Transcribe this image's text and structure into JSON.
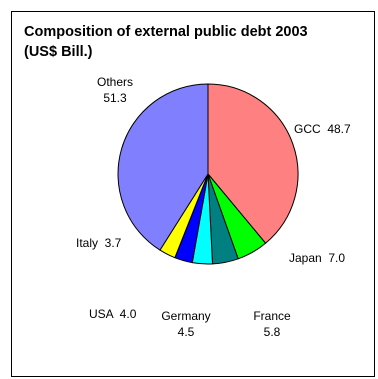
{
  "chart_data": {
    "type": "pie",
    "title": "Composition of external public debt 2003\n(US$ Bill.)",
    "slices": [
      {
        "name": "GCC",
        "value": 48.7,
        "label": "GCC  48.7",
        "color": "#FF8080"
      },
      {
        "name": "Japan",
        "value": 7.0,
        "label": "Japan  7.0",
        "color": "#00FF00"
      },
      {
        "name": "France",
        "value": 5.8,
        "label": [
          "France",
          "5.8"
        ],
        "color": "#008080"
      },
      {
        "name": "Germany",
        "value": 4.5,
        "label": [
          "Germany",
          "4.5"
        ],
        "color": "#00FFFF"
      },
      {
        "name": "USA",
        "value": 4.0,
        "label": "USA  4.0",
        "color": "#0000FF"
      },
      {
        "name": "Italy",
        "value": 3.7,
        "label": "Italy  3.7",
        "color": "#FFFF00"
      },
      {
        "name": "Others",
        "value": 51.3,
        "label": [
          "Others",
          "51.3"
        ],
        "color": "#8080FF"
      }
    ]
  }
}
